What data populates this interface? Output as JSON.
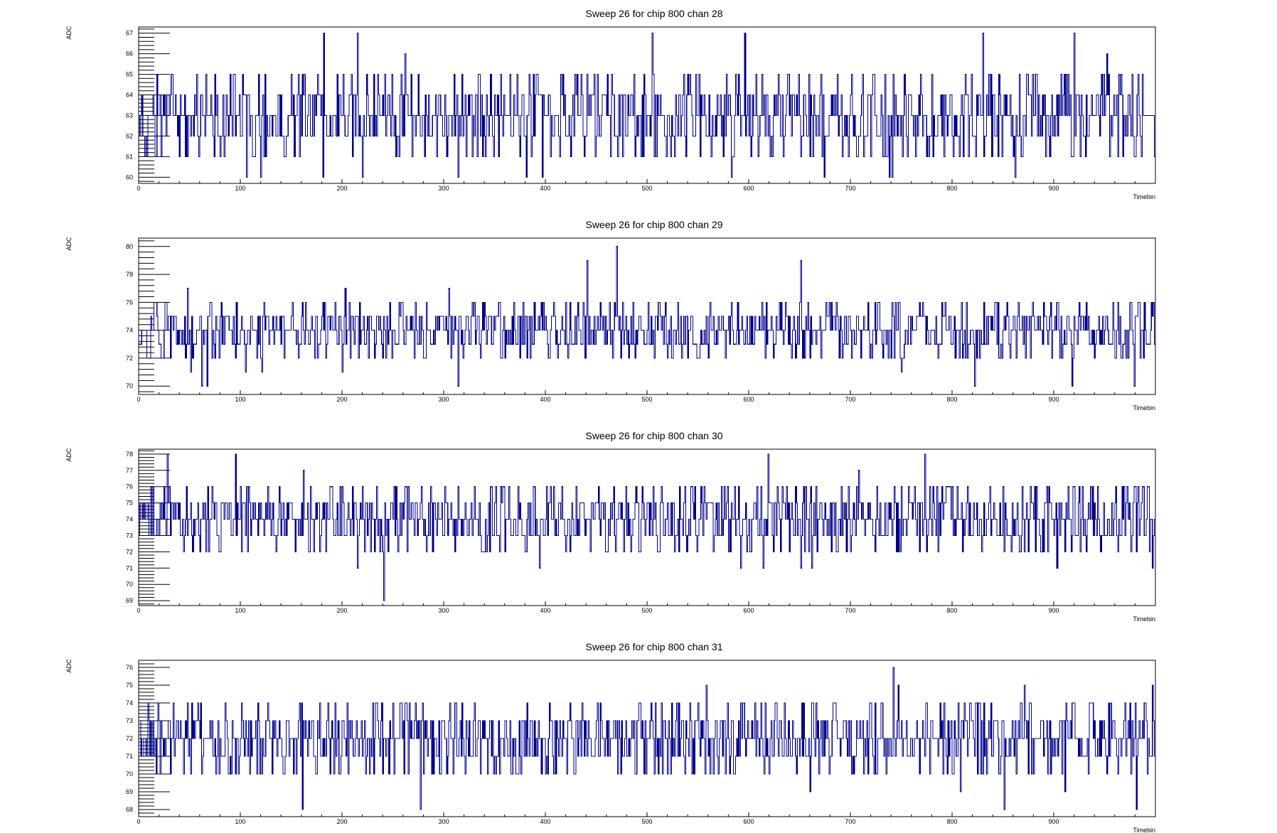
{
  "colors": {
    "trace": "#00008b",
    "axis": "#000000",
    "background": "#ffffff"
  },
  "chart_data": [
    {
      "type": "line",
      "title": "Sweep 26 for chip 800 chan 28",
      "xlabel": "Timebin",
      "ylabel": "ADC",
      "xlim": [
        0,
        1000
      ],
      "ylim": [
        59.7,
        67.3
      ],
      "xticks": [
        0,
        100,
        200,
        300,
        400,
        500,
        600,
        700,
        800,
        900
      ],
      "yticks": [
        60,
        61,
        62,
        63,
        64,
        65,
        66,
        67
      ],
      "baseline": 63,
      "special": [
        [
          48,
          61
        ],
        [
          106,
          60
        ],
        [
          120,
          60
        ],
        [
          182,
          67
        ],
        [
          215,
          67
        ],
        [
          314,
          60
        ],
        [
          381,
          60
        ],
        [
          505,
          67
        ],
        [
          583,
          60
        ],
        [
          596,
          67
        ],
        [
          674,
          60
        ],
        [
          738,
          60
        ],
        [
          741,
          60
        ],
        [
          830,
          67
        ],
        [
          862,
          60
        ],
        [
          920,
          67
        ]
      ],
      "seed": 28
    },
    {
      "type": "line",
      "title": "Sweep 26 for chip 800 chan 29",
      "xlabel": "Timebin",
      "ylabel": "ADC",
      "xlim": [
        0,
        1000
      ],
      "ylim": [
        69.4,
        80.6
      ],
      "xticks": [
        0,
        100,
        200,
        300,
        400,
        500,
        600,
        700,
        800,
        900
      ],
      "yticks": [
        70,
        72,
        74,
        76,
        78,
        80
      ],
      "baseline": 74,
      "special": [
        [
          62,
          70
        ],
        [
          67,
          70
        ],
        [
          314,
          70
        ],
        [
          441,
          79
        ],
        [
          470,
          80
        ],
        [
          651,
          79
        ],
        [
          822,
          70
        ],
        [
          918,
          70
        ],
        [
          979,
          70
        ]
      ],
      "seed": 29
    },
    {
      "type": "line",
      "title": "Sweep 26 for chip 800 chan 30",
      "xlabel": "Timebin",
      "ylabel": "ADC",
      "xlim": [
        0,
        1000
      ],
      "ylim": [
        68.7,
        78.3
      ],
      "xticks": [
        0,
        100,
        200,
        300,
        400,
        500,
        600,
        700,
        800,
        900
      ],
      "yticks": [
        69,
        70,
        71,
        72,
        73,
        74,
        75,
        76,
        77,
        78
      ],
      "baseline": 74,
      "special": [
        [
          28,
          78
        ],
        [
          95,
          78
        ],
        [
          241,
          69
        ],
        [
          619,
          78
        ],
        [
          773,
          78
        ],
        [
          997,
          71
        ]
      ],
      "seed": 30
    },
    {
      "type": "line",
      "title": "Sweep 26 for chip 800 chan 31",
      "xlabel": "Timebin",
      "ylabel": "ADC",
      "xlim": [
        0,
        1000
      ],
      "ylim": [
        67.6,
        76.4
      ],
      "xticks": [
        0,
        100,
        200,
        300,
        400,
        500,
        600,
        700,
        800,
        900
      ],
      "yticks": [
        68,
        69,
        70,
        71,
        72,
        73,
        74,
        75,
        76
      ],
      "baseline": 72,
      "special": [
        [
          161,
          68
        ],
        [
          277,
          68
        ],
        [
          742,
          76
        ],
        [
          851,
          68
        ],
        [
          981,
          68
        ]
      ],
      "seed": 31
    }
  ]
}
